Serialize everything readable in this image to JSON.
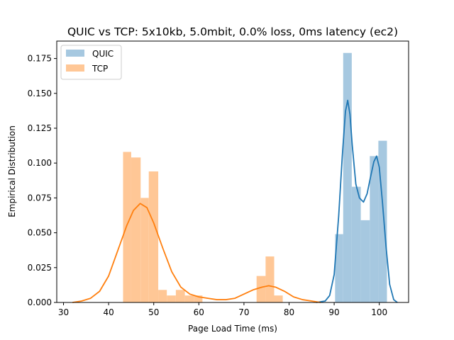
{
  "chart_data": {
    "type": "histogram+kde",
    "title": "QUIC vs TCP: 5x10kb, 5.0mbit, 0.0% loss, 0ms latency (ec2)",
    "xlabel": "Page Load Time (ms)",
    "ylabel": "Empirical Distribution",
    "xlim": [
      28.5,
      106.5
    ],
    "ylim": [
      0,
      0.1875
    ],
    "xticks": [
      30,
      40,
      50,
      60,
      70,
      80,
      90,
      100
    ],
    "yticks": [
      0.0,
      0.025,
      0.05,
      0.075,
      0.1,
      0.125,
      0.15,
      0.175
    ],
    "ytick_labels": [
      "0.000",
      "0.025",
      "0.050",
      "0.075",
      "0.100",
      "0.125",
      "0.150",
      "0.175"
    ],
    "grid": false,
    "legend_position": "upper-left",
    "series": [
      {
        "name": "QUIC",
        "color": "#1f77b4",
        "bar_color": "#a6c8e0",
        "bins": [
          {
            "x0": 90.2,
            "x1": 92.0,
            "y": 0.049
          },
          {
            "x0": 92.0,
            "x1": 93.9,
            "y": 0.179
          },
          {
            "x0": 93.9,
            "x1": 95.9,
            "y": 0.083
          },
          {
            "x0": 95.9,
            "x1": 97.9,
            "y": 0.059
          },
          {
            "x0": 97.9,
            "x1": 99.8,
            "y": 0.105
          },
          {
            "x0": 99.8,
            "x1": 101.7,
            "y": 0.116
          }
        ],
        "kde": [
          [
            86.0,
            0.0
          ],
          [
            88.0,
            0.001
          ],
          [
            89.0,
            0.005
          ],
          [
            90.0,
            0.02
          ],
          [
            91.0,
            0.062
          ],
          [
            91.8,
            0.105
          ],
          [
            92.5,
            0.137
          ],
          [
            93.0,
            0.145
          ],
          [
            93.5,
            0.135
          ],
          [
            94.0,
            0.113
          ],
          [
            94.8,
            0.085
          ],
          [
            95.6,
            0.075
          ],
          [
            96.5,
            0.072
          ],
          [
            97.3,
            0.078
          ],
          [
            98.0,
            0.089
          ],
          [
            98.8,
            0.101
          ],
          [
            99.4,
            0.105
          ],
          [
            100.0,
            0.097
          ],
          [
            100.7,
            0.072
          ],
          [
            101.5,
            0.04
          ],
          [
            102.3,
            0.013
          ],
          [
            103.2,
            0.002
          ],
          [
            104.0,
            0.0
          ]
        ]
      },
      {
        "name": "TCP",
        "color": "#ff7f0e",
        "bar_color": "#ffc796",
        "bins": [
          {
            "x0": 43.2,
            "x1": 45.0,
            "y": 0.108
          },
          {
            "x0": 45.0,
            "x1": 47.1,
            "y": 0.104
          },
          {
            "x0": 47.1,
            "x1": 48.9,
            "y": 0.075
          },
          {
            "x0": 48.9,
            "x1": 51.0,
            "y": 0.094
          },
          {
            "x0": 51.0,
            "x1": 52.9,
            "y": 0.009
          },
          {
            "x0": 52.9,
            "x1": 54.9,
            "y": 0.005
          },
          {
            "x0": 54.9,
            "x1": 56.9,
            "y": 0.009
          },
          {
            "x0": 56.9,
            "x1": 58.9,
            "y": 0.005
          },
          {
            "x0": 58.9,
            "x1": 60.8,
            "y": 0.005
          },
          {
            "x0": 72.8,
            "x1": 74.8,
            "y": 0.019
          },
          {
            "x0": 74.8,
            "x1": 76.7,
            "y": 0.033
          },
          {
            "x0": 76.7,
            "x1": 78.6,
            "y": 0.005
          }
        ],
        "kde": [
          [
            32.0,
            0.0
          ],
          [
            34.0,
            0.001
          ],
          [
            36.0,
            0.003
          ],
          [
            38.0,
            0.008
          ],
          [
            40.0,
            0.019
          ],
          [
            42.0,
            0.037
          ],
          [
            44.0,
            0.055
          ],
          [
            45.5,
            0.066
          ],
          [
            47.0,
            0.071
          ],
          [
            48.5,
            0.068
          ],
          [
            50.0,
            0.057
          ],
          [
            52.0,
            0.039
          ],
          [
            54.0,
            0.022
          ],
          [
            56.0,
            0.011
          ],
          [
            58.0,
            0.006
          ],
          [
            60.0,
            0.004
          ],
          [
            62.0,
            0.003
          ],
          [
            64.0,
            0.002
          ],
          [
            66.0,
            0.002
          ],
          [
            68.0,
            0.003
          ],
          [
            70.0,
            0.006
          ],
          [
            72.0,
            0.009
          ],
          [
            74.0,
            0.011
          ],
          [
            75.5,
            0.012
          ],
          [
            77.0,
            0.011
          ],
          [
            79.0,
            0.008
          ],
          [
            81.0,
            0.004
          ],
          [
            83.0,
            0.002
          ],
          [
            85.0,
            0.001
          ],
          [
            87.0,
            0.0
          ]
        ]
      }
    ]
  }
}
